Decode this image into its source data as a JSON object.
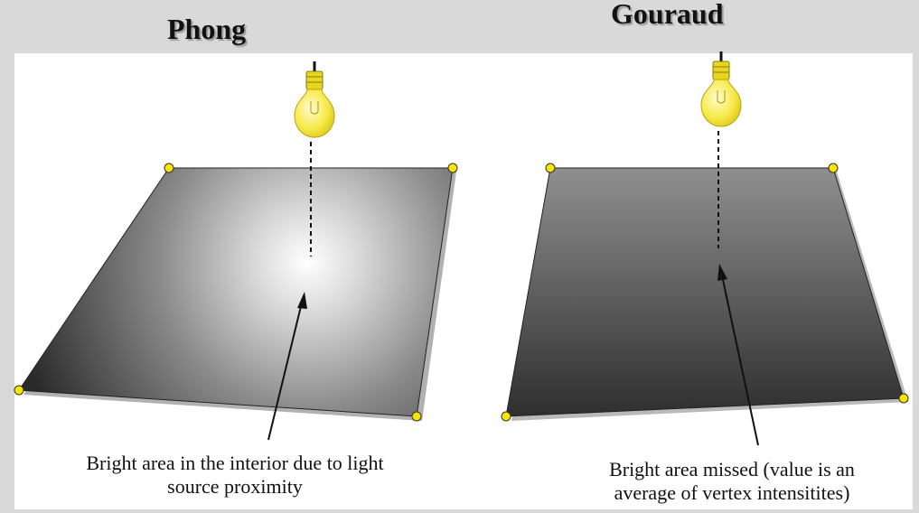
{
  "left_panel": {
    "title": "Phong",
    "caption_line1": "Bright area in the interior due to light",
    "caption_line2": "source proximity"
  },
  "right_panel": {
    "title": "Gouraud",
    "caption_line1": "Bright area missed (value is an",
    "caption_line2": "average of vertex intensitites)"
  },
  "colors": {
    "background": "#d9d9d9",
    "panel": "#ffffff",
    "vertex": "#f5e600",
    "bulb": "#f7ea4a"
  },
  "icons": [
    "light-bulb-icon",
    "vertex-dot"
  ]
}
